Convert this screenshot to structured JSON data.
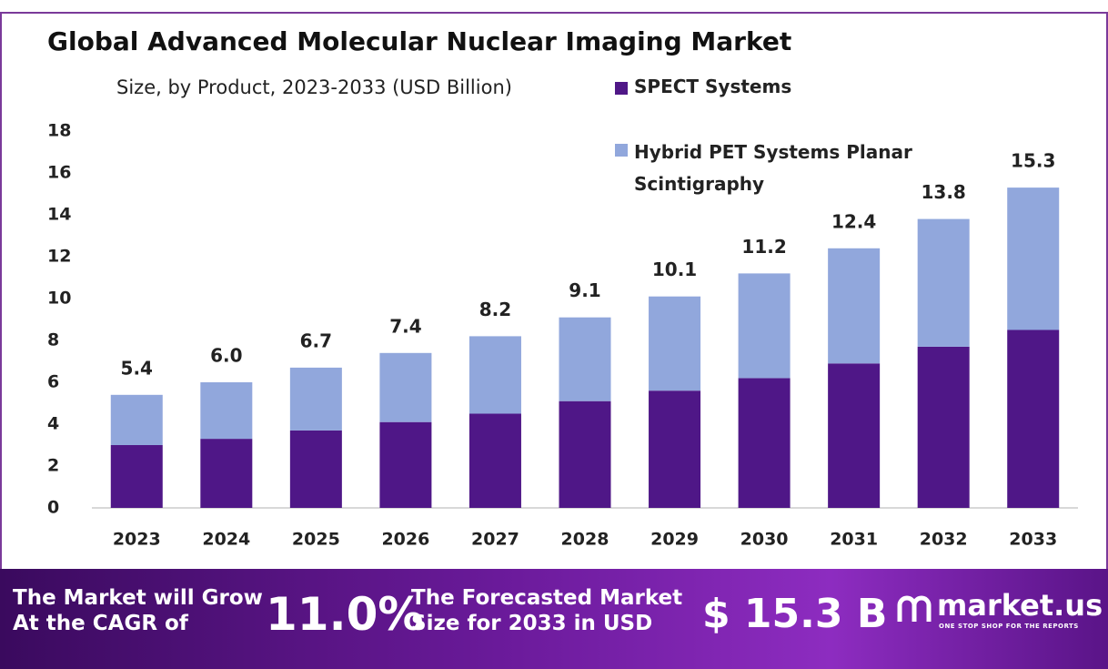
{
  "chart_data": {
    "type": "stacked-bar",
    "title": "Global Advanced Molecular Nuclear Imaging Market",
    "subtitle": "Size, by Product, 2023-2033 (USD Billion)",
    "categories": [
      "2023",
      "2024",
      "2025",
      "2026",
      "2027",
      "2028",
      "2029",
      "2030",
      "2031",
      "2032",
      "2033"
    ],
    "series": [
      {
        "name": "SPECT Systems",
        "color": "#4f1787",
        "values": [
          3.0,
          3.3,
          3.7,
          4.1,
          4.5,
          5.1,
          5.6,
          6.2,
          6.9,
          7.7,
          8.5
        ]
      },
      {
        "name": "Hybrid PET Systems Planar Scintigraphy",
        "color": "#91a7dc",
        "values": [
          2.4,
          2.7,
          3.0,
          3.3,
          3.7,
          4.0,
          4.5,
          5.0,
          5.5,
          6.1,
          6.8
        ]
      }
    ],
    "totals": [
      5.4,
      6.0,
      6.7,
      7.4,
      8.2,
      9.1,
      10.1,
      11.2,
      12.4,
      13.8,
      15.3
    ],
    "total_labels": [
      "5.4",
      "6.0",
      "6.7",
      "7.4",
      "8.2",
      "9.1",
      "10.1",
      "11.2",
      "12.4",
      "13.8",
      "15.3"
    ],
    "ylim": [
      0,
      18
    ],
    "yticks": [
      0,
      2,
      4,
      6,
      8,
      10,
      12,
      14,
      16,
      18
    ],
    "grid": false
  },
  "footer": {
    "cagr_text": [
      "The Market will Grow",
      "At the CAGR of"
    ],
    "cagr_value": "11.0%",
    "forecast_text": [
      "The Forecasted Market",
      "Size for 2033 in USD"
    ],
    "forecast_value": "$ 15.3 B",
    "brand": "market.us",
    "tagline": "ONE STOP SHOP FOR THE REPORTS"
  }
}
